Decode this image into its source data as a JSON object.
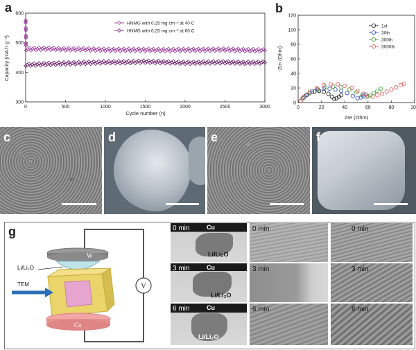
{
  "panel_labels": {
    "a": "a",
    "b": "b",
    "c": "c",
    "d": "d",
    "e": "e",
    "f": "f",
    "g": "g"
  },
  "chart_data": [
    {
      "type": "scatter",
      "panel": "a",
      "xlabel": "Cycle number (n)",
      "ylabel": "Capacity (mA h g⁻¹)",
      "xlim": [
        0,
        3000
      ],
      "ylim": [
        300,
        600
      ],
      "xticks": [
        0,
        500,
        1000,
        1500,
        2000,
        2500,
        3000
      ],
      "yticks": [
        300,
        400,
        500,
        600
      ],
      "legend_position": "top-center",
      "series": [
        {
          "name": "HNMG with 0.25 mg cm⁻² at 40 C",
          "color": "#9b3d9b",
          "x": [
            0,
            5,
            250,
            500,
            750,
            1000,
            1250,
            1500,
            1750,
            2000,
            2250,
            2500,
            2750,
            3000
          ],
          "y": [
            580,
            478,
            480,
            478,
            478,
            476,
            476,
            476,
            475,
            476,
            476,
            477,
            475,
            474
          ]
        },
        {
          "name": "HNMG with 0.25 mg cm⁻² at 60 C",
          "color": "#6a1f6a",
          "x": [
            0,
            250,
            500,
            750,
            1000,
            1250,
            1500,
            1750,
            2000,
            2250,
            2500,
            2750,
            3000
          ],
          "y": [
            425,
            428,
            430,
            432,
            434,
            434,
            436,
            434,
            432,
            433,
            434,
            432,
            433
          ]
        }
      ]
    },
    {
      "type": "scatter",
      "panel": "b",
      "xlabel": "Zre (Ohm)",
      "ylabel": "-Zm (Ohm)",
      "xlim": [
        0,
        100
      ],
      "ylim": [
        0,
        120
      ],
      "xticks": [
        0,
        20,
        40,
        60,
        80,
        100
      ],
      "yticks": [
        0,
        20,
        40,
        60,
        80,
        100,
        120
      ],
      "legend_position": "top-center",
      "series": [
        {
          "name": "1st",
          "color": "#111111",
          "x": [
            2,
            4,
            7,
            10,
            14,
            18,
            22,
            26,
            29,
            31,
            33,
            35,
            37
          ],
          "y": [
            2,
            6,
            10,
            13,
            15,
            16,
            15,
            12,
            8,
            5,
            6,
            8,
            10
          ]
        },
        {
          "name": "30th",
          "color": "#2a3fbf",
          "x": [
            2,
            4,
            8,
            12,
            17,
            22,
            27,
            32,
            37,
            42,
            47,
            51,
            54,
            56,
            58
          ],
          "y": [
            2,
            6,
            11,
            15,
            18,
            19,
            19,
            18,
            16,
            13,
            9,
            6,
            7,
            9,
            11
          ]
        },
        {
          "name": "300th",
          "color": "#3aa13a",
          "x": [
            2,
            5,
            10,
            16,
            23,
            30,
            37,
            44,
            50,
            55,
            59,
            62,
            65,
            68,
            71
          ],
          "y": [
            2,
            7,
            13,
            18,
            21,
            22,
            21,
            18,
            14,
            10,
            8,
            10,
            13,
            16,
            19
          ]
        },
        {
          "name": "3000th",
          "color": "#e0524f",
          "x": [
            2,
            5,
            10,
            16,
            22,
            28,
            34,
            40,
            46,
            51,
            56,
            60,
            64,
            68,
            72,
            76,
            80,
            84,
            88,
            91
          ],
          "y": [
            2,
            8,
            15,
            20,
            24,
            25,
            25,
            23,
            20,
            16,
            12,
            9,
            8,
            10,
            12,
            15,
            18,
            21,
            24,
            26
          ]
        }
      ]
    }
  ],
  "panel_g": {
    "electrodes": {
      "top": "W",
      "bottom": "Cu",
      "meter": "V",
      "left_label": "Li/Li₂O",
      "beam": "TEM"
    },
    "row_times": [
      "0 min",
      "3 min",
      "6 min"
    ],
    "col1_cu": "Cu",
    "col1_li": "Li/Li₂O"
  }
}
